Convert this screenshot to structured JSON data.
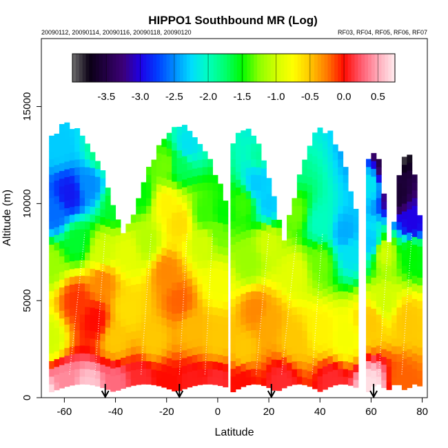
{
  "chart_data": {
    "type": "heatmap",
    "title": "HIPPO1 Southbound MR (Log)",
    "subtitle_left": "20090112, 20090114, 20090116, 20090118, 20090120",
    "subtitle_right": "RF03, RF04, RF05, RF06, RF07",
    "xlabel": "Latitude",
    "ylabel": "Altitude (m)",
    "xlim": [
      -69,
      82
    ],
    "ylim": [
      0,
      18500
    ],
    "x_ticks": [
      -60,
      -40,
      -20,
      0,
      20,
      40,
      60,
      80
    ],
    "x_tick_labels": [
      "-60",
      "-40",
      "-20",
      "0",
      "20",
      "40",
      "60",
      "80"
    ],
    "y_ticks": [
      0,
      5000,
      10000,
      15000
    ],
    "y_tick_labels": [
      "0",
      "5000",
      "10000",
      "15000"
    ],
    "colorbar": {
      "range": [
        -4.0,
        0.75
      ],
      "ticks": [
        -3.5,
        -3.0,
        -2.5,
        -2.0,
        -1.5,
        -1.0,
        -0.5,
        0.0,
        0.5
      ],
      "tick_labels": [
        "-3.5",
        "-3.0",
        "-2.5",
        "-2.0",
        "-1.5",
        "-1.0",
        "-0.5",
        "0.0",
        "0.5"
      ]
    },
    "flight_segments": [
      {
        "x0": -66,
        "x1": 4,
        "top": 13800
      },
      {
        "x0": 5,
        "x1": 54,
        "top": 13600
      },
      {
        "x0": 58,
        "x1": 79,
        "top": 12500
      }
    ],
    "value_zones": [
      {
        "x": -66,
        "y": 0,
        "v": 0.7
      },
      {
        "x": -60,
        "y": 800,
        "v": 0.4
      },
      {
        "x": -50,
        "y": 500,
        "v": 0.6
      },
      {
        "x": -40,
        "y": 700,
        "v": 0.3
      },
      {
        "x": -30,
        "y": 900,
        "v": 0.1
      },
      {
        "x": -20,
        "y": 800,
        "v": 0.0
      },
      {
        "x": -10,
        "y": 800,
        "v": 0.05
      },
      {
        "x": 0,
        "y": 800,
        "v": 0.1
      },
      {
        "x": 10,
        "y": 800,
        "v": 0.0
      },
      {
        "x": 25,
        "y": 800,
        "v": 0.1
      },
      {
        "x": 45,
        "y": 800,
        "v": 0.1
      },
      {
        "x": 60,
        "y": 600,
        "v": 0.7
      },
      {
        "x": 72,
        "y": 800,
        "v": -0.2
      },
      {
        "x": -66,
        "y": 3000,
        "v": -1.0
      },
      {
        "x": -55,
        "y": 5000,
        "v": -0.1
      },
      {
        "x": -48,
        "y": 4000,
        "v": 0.0
      },
      {
        "x": -45,
        "y": 6000,
        "v": -0.3
      },
      {
        "x": -40,
        "y": 3000,
        "v": -0.5
      },
      {
        "x": -35,
        "y": 4500,
        "v": -0.6
      },
      {
        "x": -25,
        "y": 3000,
        "v": -0.5
      },
      {
        "x": -20,
        "y": 6500,
        "v": -0.3
      },
      {
        "x": -15,
        "y": 5000,
        "v": -0.2
      },
      {
        "x": -10,
        "y": 3500,
        "v": -0.45
      },
      {
        "x": 0,
        "y": 3000,
        "v": -0.5
      },
      {
        "x": 0,
        "y": 6000,
        "v": -0.8
      },
      {
        "x": 10,
        "y": 2500,
        "v": -0.5
      },
      {
        "x": 15,
        "y": 4500,
        "v": -0.3
      },
      {
        "x": 20,
        "y": 4000,
        "v": -0.4
      },
      {
        "x": 30,
        "y": 3000,
        "v": -0.5
      },
      {
        "x": 40,
        "y": 3500,
        "v": -0.7
      },
      {
        "x": 50,
        "y": 3000,
        "v": -0.8
      },
      {
        "x": 60,
        "y": 4000,
        "v": -0.5
      },
      {
        "x": 65,
        "y": 5000,
        "v": -1.0
      },
      {
        "x": 74,
        "y": 4000,
        "v": -0.5
      },
      {
        "x": -66,
        "y": 7000,
        "v": -1.2
      },
      {
        "x": -55,
        "y": 8000,
        "v": -1.6
      },
      {
        "x": -45,
        "y": 7500,
        "v": -1.0
      },
      {
        "x": -35,
        "y": 7500,
        "v": -0.9
      },
      {
        "x": -28,
        "y": 8000,
        "v": -1.1
      },
      {
        "x": -20,
        "y": 10000,
        "v": -0.7
      },
      {
        "x": -15,
        "y": 9000,
        "v": -0.6
      },
      {
        "x": -5,
        "y": 8000,
        "v": -1.0
      },
      {
        "x": 0,
        "y": 8500,
        "v": -1.3
      },
      {
        "x": 12,
        "y": 7000,
        "v": -1.2
      },
      {
        "x": 20,
        "y": 8000,
        "v": -1.0
      },
      {
        "x": 30,
        "y": 6500,
        "v": -0.9
      },
      {
        "x": 40,
        "y": 7000,
        "v": -1.3
      },
      {
        "x": 52,
        "y": 7500,
        "v": -2.2
      },
      {
        "x": 60,
        "y": 8000,
        "v": -2.3
      },
      {
        "x": 65,
        "y": 7500,
        "v": -1.0
      },
      {
        "x": 76,
        "y": 7500,
        "v": -1.5
      },
      {
        "x": -64,
        "y": 9500,
        "v": -2.6
      },
      {
        "x": -58,
        "y": 10500,
        "v": -2.9
      },
      {
        "x": -50,
        "y": 11000,
        "v": -2.5
      },
      {
        "x": -62,
        "y": 13000,
        "v": -2.3
      },
      {
        "x": -45,
        "y": 12500,
        "v": -1.8
      },
      {
        "x": -40,
        "y": 10000,
        "v": -1.6
      },
      {
        "x": -30,
        "y": 10500,
        "v": -1.5
      },
      {
        "x": -20,
        "y": 12000,
        "v": -1.3
      },
      {
        "x": -15,
        "y": 12000,
        "v": -1.7
      },
      {
        "x": -12,
        "y": 13000,
        "v": -2.2
      },
      {
        "x": -5,
        "y": 9500,
        "v": -1.4
      },
      {
        "x": 2,
        "y": 9500,
        "v": -1.5
      },
      {
        "x": 10,
        "y": 10000,
        "v": -1.4
      },
      {
        "x": 15,
        "y": 11000,
        "v": -2.3
      },
      {
        "x": 17,
        "y": 12500,
        "v": -1.9
      },
      {
        "x": 22,
        "y": 12500,
        "v": -3.3
      },
      {
        "x": 20,
        "y": 10000,
        "v": -2.3
      },
      {
        "x": 27,
        "y": 12000,
        "v": -1.7
      },
      {
        "x": 30,
        "y": 9500,
        "v": -1.3
      },
      {
        "x": 40,
        "y": 9000,
        "v": -2.0
      },
      {
        "x": 50,
        "y": 8500,
        "v": -2.4
      },
      {
        "x": 60,
        "y": 11000,
        "v": -2.2
      },
      {
        "x": 66,
        "y": 11500,
        "v": -3.5
      },
      {
        "x": 70,
        "y": 10500,
        "v": -3.6
      },
      {
        "x": 68,
        "y": 12500,
        "v": -4.0
      },
      {
        "x": 76,
        "y": 9000,
        "v": -3.0
      }
    ],
    "arrows_x": [
      -44,
      -15,
      21,
      61
    ]
  }
}
